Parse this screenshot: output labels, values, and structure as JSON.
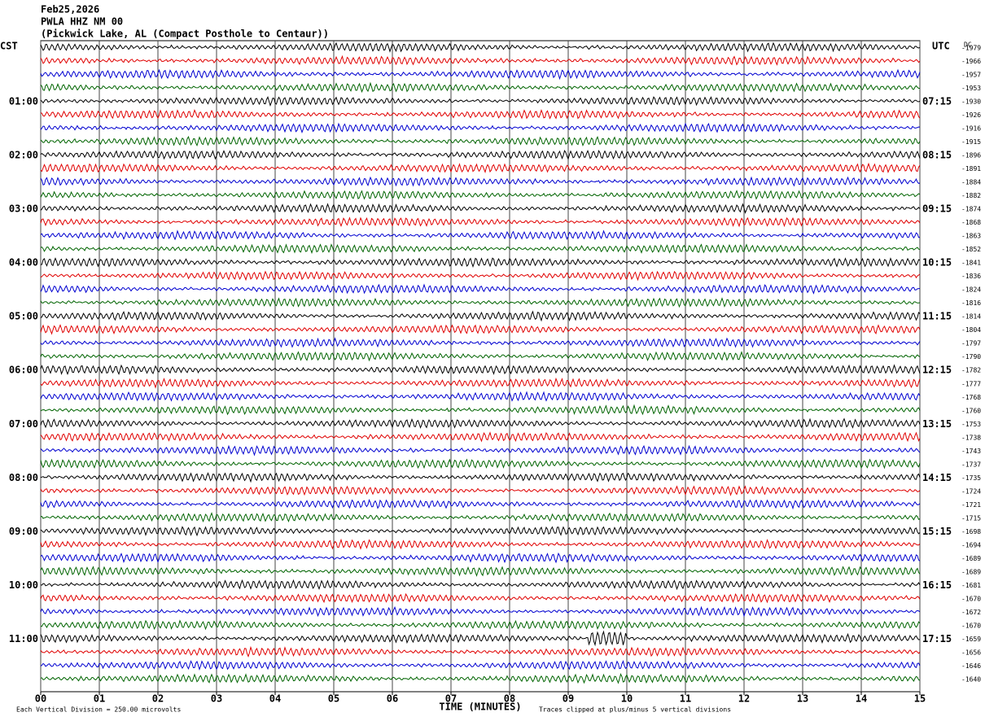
{
  "header": {
    "date": "Feb25,2026",
    "station": "PWLA HHZ NM 00",
    "location": "(Pickwick Lake, AL (Compact Posthole to Centaur))"
  },
  "left_axis_label": "CST",
  "right_axis_label": "UTC",
  "dc_label": "DC",
  "left_times": [
    "01:00",
    "02:00",
    "03:00",
    "04:00",
    "05:00",
    "06:00",
    "07:00",
    "08:00",
    "09:00",
    "10:00",
    "11:00"
  ],
  "right_times": [
    "07:15",
    "08:15",
    "09:15",
    "10:15",
    "11:15",
    "12:15",
    "13:15",
    "14:15",
    "15:15",
    "16:15",
    "17:15"
  ],
  "dc_values": [
    -1979,
    -1966,
    -1957,
    -1953,
    -1930,
    -1926,
    -1916,
    -1915,
    -1896,
    -1891,
    -1884,
    -1882,
    -1874,
    -1868,
    -1863,
    -1852,
    -1841,
    -1836,
    -1824,
    -1816,
    -1814,
    -1804,
    -1797,
    -1790,
    -1782,
    -1777,
    -1768,
    -1760,
    -1753,
    -1738,
    -1743,
    -1737,
    -1735,
    -1724,
    -1721,
    -1715,
    -1698,
    -1694,
    -1689,
    -1689,
    -1681,
    -1670,
    -1672,
    -1670,
    -1659,
    -1656,
    -1646,
    -1640
  ],
  "x_ticks": [
    "00",
    "01",
    "02",
    "03",
    "04",
    "05",
    "06",
    "07",
    "08",
    "09",
    "10",
    "11",
    "12",
    "13",
    "14",
    "15"
  ],
  "x_axis_label": "TIME (MINUTES)",
  "footer_left": "Each Vertical Division =  250.00 microvolts",
  "footer_right": "Traces clipped at plus/minus 5 vertical divisions",
  "trace_colors": [
    "#000000",
    "#e00000",
    "#0000d0",
    "#006400"
  ]
}
